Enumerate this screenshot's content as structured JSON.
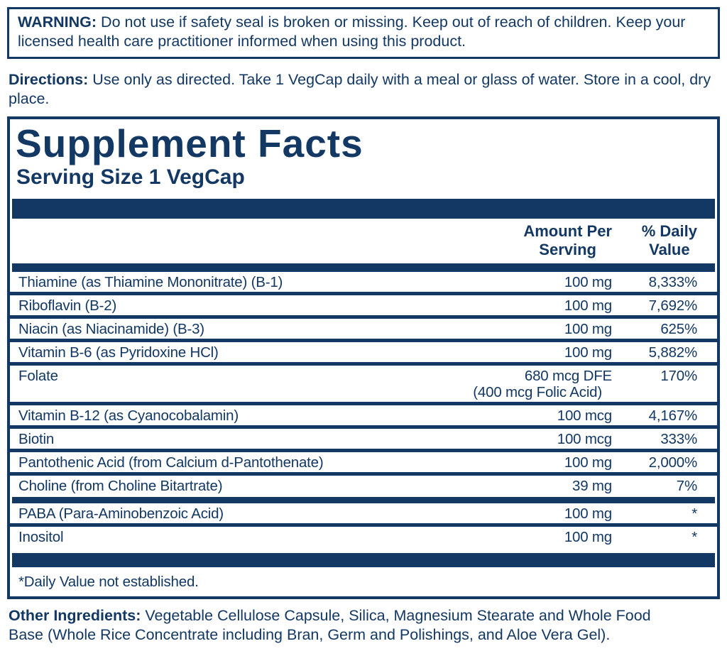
{
  "colors": {
    "navy": "#123863",
    "background": "#ffffff"
  },
  "warning": {
    "label": "WARNING:",
    "text": " Do not use if safety seal is broken or missing. Keep out of reach of children. Keep your licensed health care practitioner informed when using this product."
  },
  "directions": {
    "label": "Directions:",
    "text": " Use only as directed. Take 1 VegCap daily with a meal or glass of water. Store in a cool, dry place."
  },
  "facts": {
    "title": "Supplement Facts",
    "serving_size": "Serving Size 1 VegCap",
    "headers": {
      "amount_line1": "Amount Per",
      "amount_line2": "Serving",
      "dv_line1": "% Daily",
      "dv_line2": "Value"
    },
    "rows": [
      {
        "name": "Thiamine (as Thiamine Mononitrate) (B-1)",
        "amount": "100 mg",
        "dv": "8,333%"
      },
      {
        "name": "Riboflavin (B-2)",
        "amount": "100 mg",
        "dv": "7,692%"
      },
      {
        "name": "Niacin (as Niacinamide) (B-3)",
        "amount": "100 mg",
        "dv": "625%"
      },
      {
        "name": "Vitamin B-6 (as Pyridoxine HCl)",
        "amount": "100 mg",
        "dv": "5,882%"
      },
      {
        "name": "Folate",
        "amount": "680 mcg DFE",
        "amount2": "(400 mcg Folic Acid)",
        "dv": "170%"
      },
      {
        "name": "Vitamin B-12 (as Cyanocobalamin)",
        "amount": "100 mcg",
        "dv": "4,167%"
      },
      {
        "name": "Biotin",
        "amount": "100 mcg",
        "dv": "333%"
      },
      {
        "name": "Pantothenic Acid (from Calcium d-Pantothenate)",
        "amount": "100 mg",
        "dv": "2,000%"
      },
      {
        "name": "Choline (from Choline Bitartrate)",
        "amount": "39 mg",
        "dv": "7%"
      }
    ],
    "rows_no_dv": [
      {
        "name": "PABA (Para-Aminobenzoic Acid)",
        "amount": "100 mg",
        "dv": "*"
      },
      {
        "name": "Inositol",
        "amount": "100 mg",
        "dv": "*"
      }
    ],
    "footnote": "*Daily Value not established."
  },
  "other_ingredients": {
    "label": "Other Ingredients:",
    "text": " Vegetable Cellulose Capsule, Silica, Magnesium Stearate and Whole Food Base (Whole Rice Concentrate including Bran, Germ and Polishings, and Aloe Vera Gel)."
  }
}
